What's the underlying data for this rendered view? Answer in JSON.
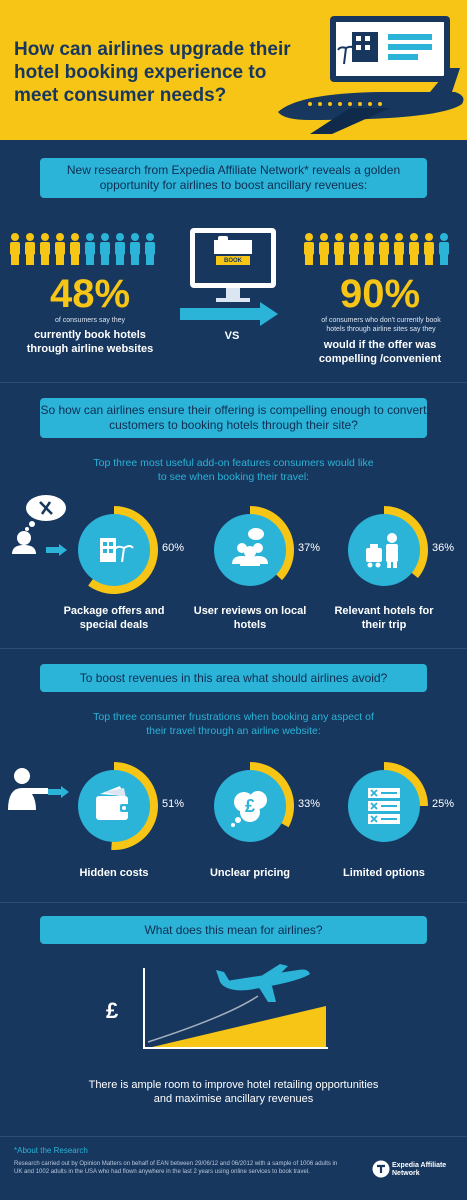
{
  "header": {
    "title": "How can airlines upgrade their hotel booking experience to meet consumer needs?",
    "colors": {
      "yellow": "#f6c515",
      "navy": "#17375e",
      "cyan": "#2bb3d8"
    }
  },
  "intro": {
    "banner": "New research from Expedia Affiliate Network* reveals a golden opportunity for airlines to boost ancillary revenues:"
  },
  "stats": {
    "left": {
      "value": 0.48,
      "pct": "48%",
      "small": "of consumers say they",
      "label": "currently book hotels through airline websites"
    },
    "center": {
      "screen_label": "BOOK",
      "vs": "VS"
    },
    "right": {
      "value": 0.9,
      "pct": "90%",
      "small": "of consumers who don't currently book hotels through airline sites say they",
      "label": "would if the offer was compelling /convenient"
    }
  },
  "features": {
    "banner": "So how can airlines ensure their offering is compelling enough to convert customers to booking hotels through their site?",
    "subtitle": "Top three most useful add-on features consumers would like to see when booking their travel:",
    "items": [
      {
        "value": 0.6,
        "pct": "60%",
        "label": "Package offers and special deals",
        "icon": "hotel-palm-icon"
      },
      {
        "value": 0.37,
        "pct": "37%",
        "label": "User reviews on local hotels",
        "icon": "people-speech-icon"
      },
      {
        "value": 0.36,
        "pct": "36%",
        "label": "Relevant hotels for their trip",
        "icon": "bellhop-icon"
      }
    ]
  },
  "avoid": {
    "banner": "To boost revenues in this area what should airlines avoid?",
    "subtitle": "Top three consumer frustrations when booking any aspect of their travel through an airline website:",
    "items": [
      {
        "value": 0.51,
        "pct": "51%",
        "label": "Hidden costs",
        "icon": "wallet-icon"
      },
      {
        "value": 0.33,
        "pct": "33%",
        "label": "Unclear pricing",
        "icon": "pound-cloud-icon"
      },
      {
        "value": 0.25,
        "pct": "25%",
        "label": "Limited options",
        "icon": "checklist-icon"
      }
    ]
  },
  "meaning": {
    "banner": "What does this mean for airlines?",
    "pound": "£",
    "caption": "There is ample room to improve hotel retailing opportunities and maximise ancillary revenues"
  },
  "footer": {
    "about": "*About the Research",
    "note": "Research carried out by Opinion Matters on behalf of EAN between 29/06/12 and 06/2012 with a sample of 1006 adults in UK and 1002 adults in the USA who had flown anywhere in the last 2 years using online services to book travel.",
    "brand": "Expedia Affiliate Network"
  }
}
